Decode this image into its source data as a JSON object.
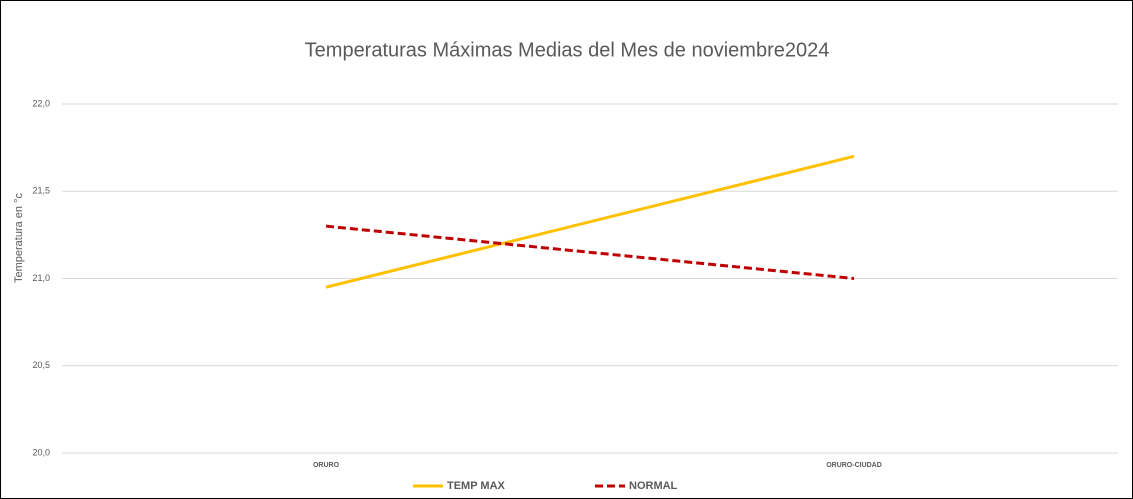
{
  "chart_data": {
    "type": "line",
    "title": "Temperaturas Máximas Medias del Mes de noviembre2024",
    "y_label": "Temperatura en °c",
    "categories": [
      "ORURO",
      "ORURO-CIUDAD"
    ],
    "series": [
      {
        "name": "TEMP MAX",
        "color": "#ffc000",
        "dash": false,
        "values": [
          20.95,
          21.7
        ]
      },
      {
        "name": "NORMAL",
        "color": "#c00000",
        "dash": true,
        "values": [
          21.3,
          21.0
        ]
      }
    ],
    "ylim": [
      20,
      22
    ],
    "yticks": [
      {
        "value": 20,
        "label": "20,0"
      },
      {
        "value": 20.5,
        "label": "20,5"
      },
      {
        "value": 21,
        "label": "21,0"
      },
      {
        "value": 21.5,
        "label": "21,5"
      },
      {
        "value": 22,
        "label": "22,0"
      }
    ],
    "grid": true,
    "legend": "bottom"
  }
}
